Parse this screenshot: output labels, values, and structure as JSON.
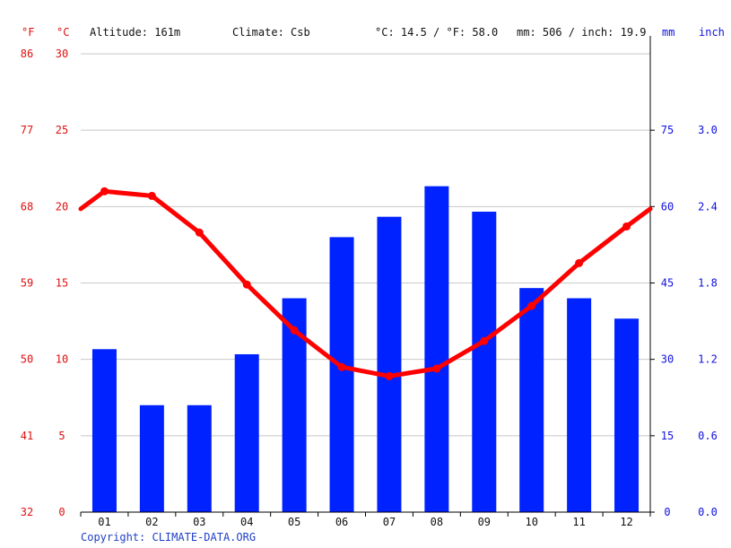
{
  "header": {
    "unit_f": "°F",
    "unit_c": "°C",
    "altitude": "Altitude: 161m",
    "climate": "Climate: Csb",
    "avg_temp": "°C: 14.5 / °F: 58.0",
    "precip": "mm: 506 / inch: 19.9",
    "unit_mm": "mm",
    "unit_inch": "inch"
  },
  "copyright": "Copyright: CLIMATE-DATA.ORG",
  "colors": {
    "bars": "#0022ff",
    "line": "#ff0000",
    "temp_axis": "#e01010",
    "precip_axis": "#1010e0",
    "grid": "#c8c8c8"
  },
  "chart_data": {
    "type": "bar+line",
    "categories": [
      "01",
      "02",
      "03",
      "04",
      "05",
      "06",
      "07",
      "08",
      "09",
      "10",
      "11",
      "12"
    ],
    "series": [
      {
        "type": "bar",
        "axis": "right",
        "unit": "mm",
        "values": [
          32,
          21,
          21,
          31,
          42,
          54,
          58,
          64,
          59,
          44,
          42,
          38
        ]
      },
      {
        "type": "line",
        "axis": "left",
        "unit": "°C",
        "values": [
          21.0,
          20.7,
          18.3,
          14.9,
          11.9,
          9.5,
          8.9,
          9.4,
          11.2,
          13.5,
          16.3,
          18.7
        ]
      }
    ],
    "temp_axis_c": {
      "ticks": [
        0,
        5,
        10,
        15,
        20,
        25,
        30
      ],
      "range": [
        0,
        30
      ]
    },
    "temp_axis_f": {
      "ticks": [
        32,
        41,
        50,
        59,
        68,
        77,
        86
      ]
    },
    "precip_axis_mm": {
      "ticks": [
        0,
        15,
        30,
        45,
        60,
        75
      ],
      "range": [
        0,
        90
      ]
    },
    "precip_axis_inch": {
      "ticks": [
        "0.0",
        "0.6",
        "1.2",
        "1.8",
        "2.4",
        "3.0"
      ]
    },
    "grid": true
  }
}
